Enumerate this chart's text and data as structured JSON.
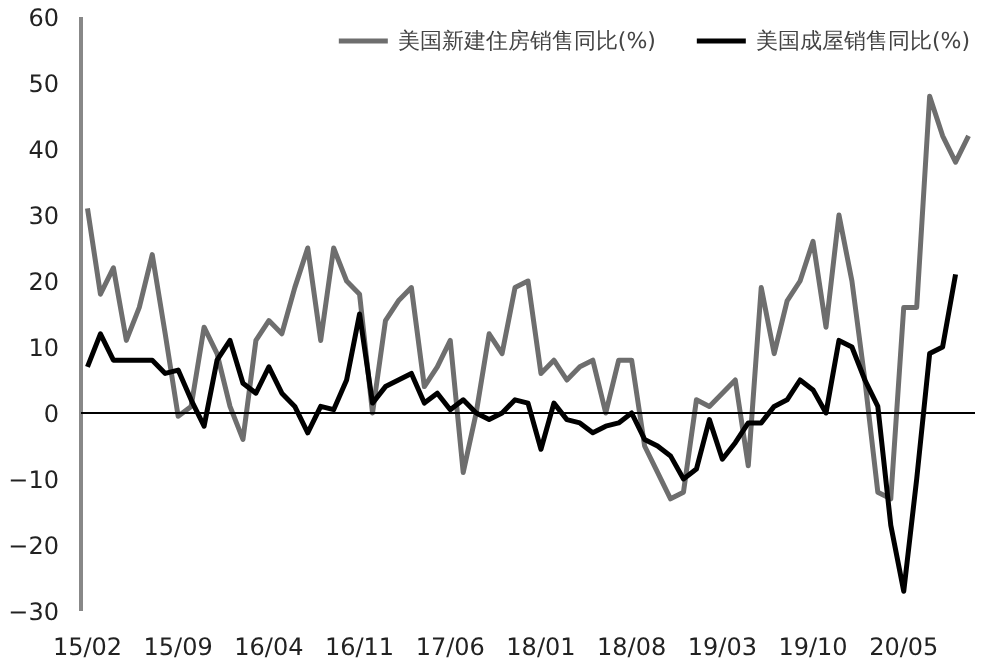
{
  "chart_data": {
    "type": "line",
    "categories": [
      "15/02",
      null,
      null,
      null,
      null,
      null,
      null,
      "15/09",
      null,
      null,
      null,
      null,
      null,
      null,
      "16/04",
      null,
      null,
      null,
      null,
      null,
      null,
      "16/11",
      null,
      null,
      null,
      null,
      null,
      null,
      "17/06",
      null,
      null,
      null,
      null,
      null,
      null,
      "18/01",
      null,
      null,
      null,
      null,
      null,
      null,
      "18/08",
      null,
      null,
      null,
      null,
      null,
      null,
      "19/03",
      null,
      null,
      null,
      null,
      null,
      null,
      "19/10",
      null,
      null,
      null,
      null,
      null,
      null,
      "20/05",
      null,
      null,
      null,
      null,
      null
    ],
    "series": [
      {
        "name": "美国新建住房销售同比(%)",
        "color": "#6e6e6e",
        "values": [
          31,
          18,
          22,
          11,
          16,
          24,
          12,
          -0.5,
          1,
          13,
          9,
          1,
          -4,
          11,
          14,
          12,
          19,
          25,
          11,
          25,
          20,
          18,
          0,
          14,
          17,
          19,
          4,
          7,
          11,
          -9,
          0,
          12,
          9,
          19,
          20,
          6,
          8,
          5,
          7,
          8,
          0,
          8,
          8,
          -5,
          -9,
          -13,
          -12,
          2,
          1,
          3,
          5,
          -8,
          19,
          9,
          17,
          20,
          26,
          13,
          30,
          20,
          5,
          -12,
          -13,
          16,
          16,
          48,
          42,
          38,
          42
        ]
      },
      {
        "name": "美国成屋销售同比(%)",
        "color": "#000000",
        "values": [
          7,
          12,
          8,
          8,
          8,
          8,
          6,
          6.5,
          2,
          -2,
          8,
          11,
          4.5,
          3,
          7,
          3,
          1,
          -3,
          1,
          0.5,
          5,
          15,
          1.5,
          4,
          5,
          6,
          1.5,
          3,
          0.5,
          2,
          0,
          -1,
          0,
          2,
          1.5,
          -5.5,
          1.5,
          -1,
          -1.5,
          -3,
          -2,
          -1.5,
          0,
          -4,
          -5,
          -6.5,
          -10,
          -8.5,
          -1,
          -7,
          -4.5,
          -1.5,
          -1.5,
          1,
          2,
          5,
          3.5,
          0,
          11,
          10,
          5,
          1,
          -17,
          -27,
          -10,
          9,
          10,
          21,
          null
        ]
      }
    ],
    "ylim": [
      -30,
      60
    ],
    "yticks": [
      -30,
      -20,
      -10,
      0,
      10,
      20,
      30,
      40,
      50,
      60
    ],
    "ref_lines": [
      {
        "axis": "y",
        "value": 0,
        "color": "#000000"
      }
    ],
    "grid": false,
    "legend": "top"
  }
}
